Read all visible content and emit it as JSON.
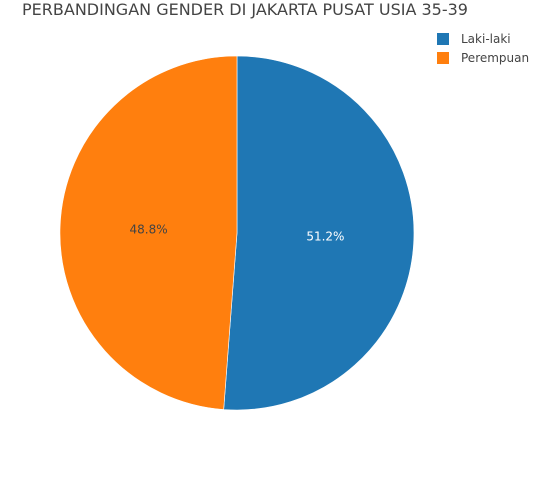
{
  "chart_data": {
    "type": "pie",
    "title": "PERBANDINGAN GENDER DI JAKARTA PUSAT USIA 35-39",
    "categories": [
      "Laki-laki",
      "Perempuan"
    ],
    "values": [
      51.2,
      48.8
    ],
    "labels": [
      "51.2%",
      "48.8%"
    ],
    "colors": [
      "#1f77b4",
      "#ff7f0e"
    ],
    "label_colors": [
      "#ffffff",
      "#444444"
    ],
    "legend_position": "top-right",
    "direction": "clockwise",
    "start": "top"
  }
}
